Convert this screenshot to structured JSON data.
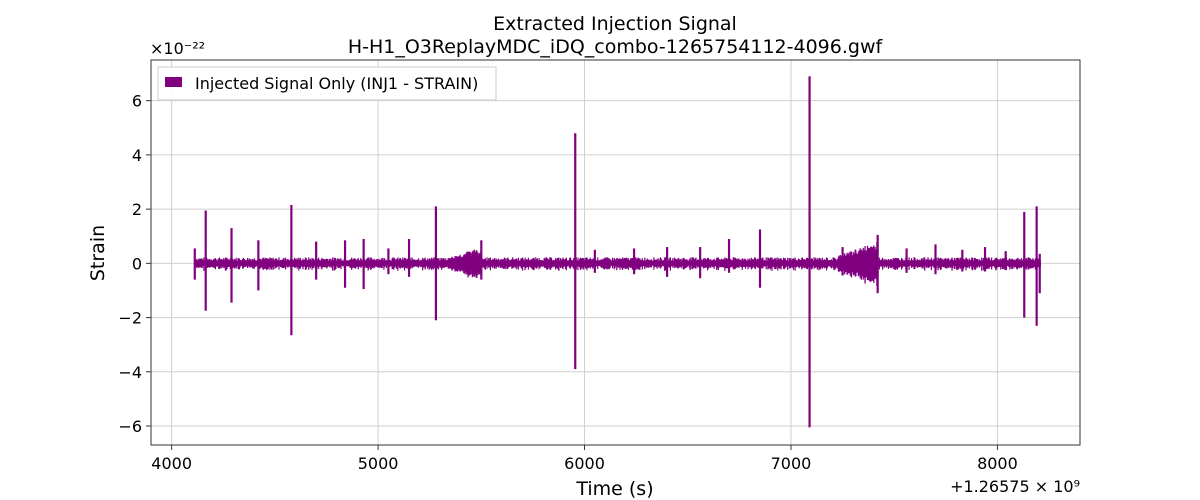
{
  "chart_data": {
    "type": "line",
    "title": "Extracted Injection Signal",
    "subtitle": "H-H1_O3ReplayMDC_iDQ_combo-1265754112-4096.gwf",
    "xlabel": "Time (s)",
    "ylabel": "Strain",
    "x_offset_label": "+1.26575 × 10⁹",
    "y_scale_label": "×10⁻²²",
    "xlim": [
      3900,
      8400
    ],
    "ylim": [
      -6.7,
      7.5
    ],
    "x_ticks": [
      4000,
      5000,
      6000,
      7000,
      8000
    ],
    "x_tick_labels": [
      "4000",
      "5000",
      "6000",
      "7000",
      "8000"
    ],
    "y_ticks": [
      -6,
      -4,
      -2,
      0,
      2,
      4,
      6
    ],
    "y_tick_labels": [
      "−6",
      "−4",
      "−2",
      "0",
      "2",
      "4",
      "6"
    ],
    "grid": true,
    "legend_position": "top-left",
    "series": [
      {
        "name": "Injected Signal Only (INJ1 - STRAIN)",
        "color": "#800080",
        "baseline": {
          "x": [
            4112,
            8208
          ],
          "amplitude": 0.08
        },
        "spikes": [
          {
            "x": 4112,
            "ymax": 0.55,
            "ymin": -0.6
          },
          {
            "x": 4165,
            "ymax": 1.95,
            "ymin": -1.75
          },
          {
            "x": 4290,
            "ymax": 1.3,
            "ymin": -1.45
          },
          {
            "x": 4420,
            "ymax": 0.85,
            "ymin": -1.0
          },
          {
            "x": 4580,
            "ymax": 2.15,
            "ymin": -2.65
          },
          {
            "x": 4700,
            "ymax": 0.8,
            "ymin": -0.6
          },
          {
            "x": 4840,
            "ymax": 0.85,
            "ymin": -0.9
          },
          {
            "x": 4930,
            "ymax": 0.9,
            "ymin": -0.95
          },
          {
            "x": 5050,
            "ymax": 0.55,
            "ymin": -0.4
          },
          {
            "x": 5150,
            "ymax": 0.9,
            "ymin": -0.5
          },
          {
            "x": 5280,
            "ymax": 2.1,
            "ymin": -2.1
          },
          {
            "x": 5500,
            "ymax": 0.85,
            "ymin": -0.6
          },
          {
            "x": 5955,
            "ymax": 4.8,
            "ymin": -3.9
          },
          {
            "x": 6050,
            "ymax": 0.5,
            "ymin": -0.35
          },
          {
            "x": 6240,
            "ymax": 0.55,
            "ymin": -0.4
          },
          {
            "x": 6400,
            "ymax": 0.6,
            "ymin": -0.5
          },
          {
            "x": 6560,
            "ymax": 0.6,
            "ymin": -0.55
          },
          {
            "x": 6700,
            "ymax": 0.9,
            "ymin": -0.35
          },
          {
            "x": 6850,
            "ymax": 1.25,
            "ymin": -0.9
          },
          {
            "x": 7090,
            "ymax": 6.9,
            "ymin": -6.05
          },
          {
            "x": 7250,
            "ymax": 0.6,
            "ymin": -0.45
          },
          {
            "x": 7420,
            "ymax": 1.05,
            "ymin": -1.1
          },
          {
            "x": 7560,
            "ymax": 0.55,
            "ymin": -0.35
          },
          {
            "x": 7700,
            "ymax": 0.7,
            "ymin": -0.4
          },
          {
            "x": 7830,
            "ymax": 0.5,
            "ymin": -0.3
          },
          {
            "x": 7940,
            "ymax": 0.6,
            "ymin": -0.3
          },
          {
            "x": 8040,
            "ymax": 0.45,
            "ymin": -0.25
          },
          {
            "x": 8130,
            "ymax": 1.9,
            "ymin": -2.0
          },
          {
            "x": 8190,
            "ymax": 2.1,
            "ymin": -2.3
          },
          {
            "x": 8205,
            "ymax": 0.35,
            "ymin": -1.1
          }
        ],
        "bursts": [
          {
            "x": [
              5340,
              5500
            ],
            "amplitude": 0.55
          },
          {
            "x": [
              7230,
              7420
            ],
            "amplitude": 0.75
          }
        ]
      }
    ]
  }
}
